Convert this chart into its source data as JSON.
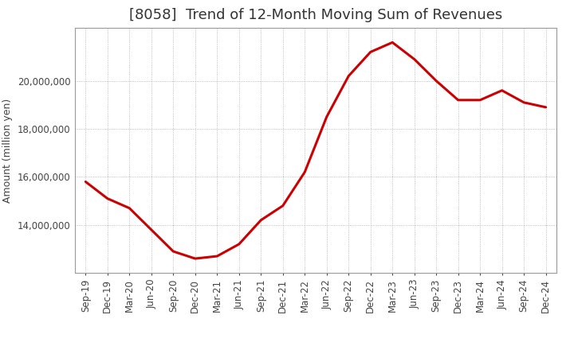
{
  "title": "[8058]  Trend of 12-Month Moving Sum of Revenues",
  "ylabel": "Amount (million yen)",
  "line_color": "#cc0000",
  "background_color": "#ffffff",
  "plot_bg_color": "#f5f5f5",
  "grid_color": "#aaaaaa",
  "x_labels": [
    "Sep-19",
    "Dec-19",
    "Mar-20",
    "Jun-20",
    "Sep-20",
    "Dec-20",
    "Mar-21",
    "Jun-21",
    "Sep-21",
    "Dec-21",
    "Mar-22",
    "Jun-22",
    "Sep-22",
    "Dec-22",
    "Mar-23",
    "Jun-23",
    "Sep-23",
    "Dec-23",
    "Mar-24",
    "Jun-24",
    "Sep-24",
    "Dec-24"
  ],
  "x_values": [
    0,
    1,
    2,
    3,
    4,
    5,
    6,
    7,
    8,
    9,
    10,
    11,
    12,
    13,
    14,
    15,
    16,
    17,
    18,
    19,
    20,
    21
  ],
  "y_values": [
    15800000,
    15100000,
    14700000,
    13800000,
    12900000,
    12600000,
    12700000,
    13200000,
    14200000,
    14800000,
    16200000,
    18500000,
    20200000,
    21200000,
    21600000,
    20900000,
    20000000,
    19200000,
    19200000,
    19600000,
    19100000,
    18900000
  ],
  "ylim_min": 12000000,
  "ylim_max": 22200000,
  "ytick_values": [
    14000000,
    16000000,
    18000000,
    20000000
  ],
  "title_fontsize": 13,
  "axis_fontsize": 9,
  "tick_fontsize": 8.5,
  "line_width": 2.2
}
